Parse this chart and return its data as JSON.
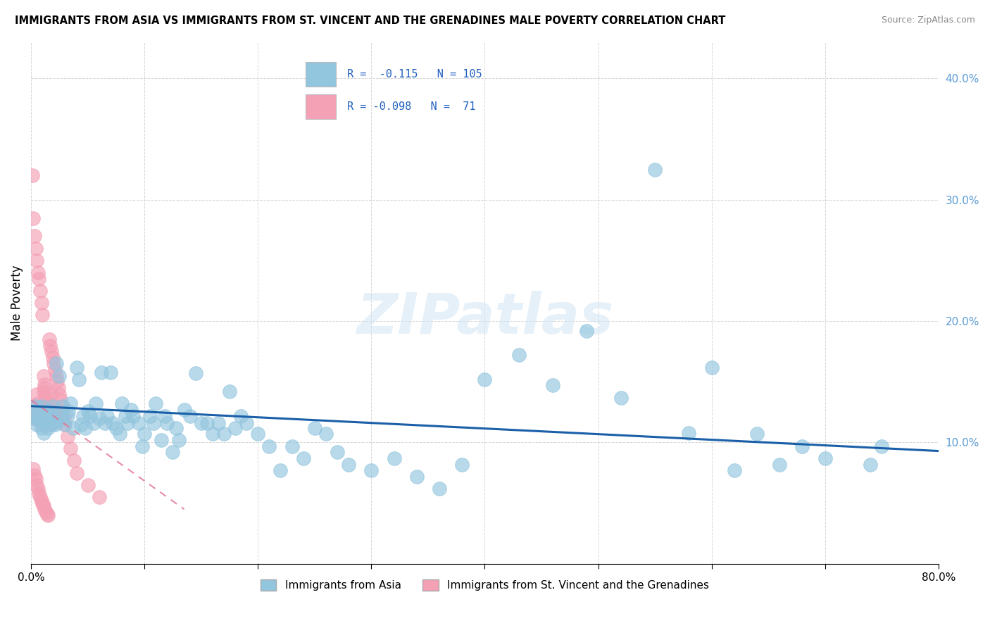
{
  "title": "IMMIGRANTS FROM ASIA VS IMMIGRANTS FROM ST. VINCENT AND THE GRENADINES MALE POVERTY CORRELATION CHART",
  "source": "Source: ZipAtlas.com",
  "ylabel": "Male Poverty",
  "yticks": [
    0.0,
    0.1,
    0.2,
    0.3,
    0.4
  ],
  "ytick_labels": [
    "",
    "10.0%",
    "20.0%",
    "30.0%",
    "40.0%"
  ],
  "xlim": [
    0.0,
    0.8
  ],
  "ylim": [
    0.0,
    0.43
  ],
  "legend_r_blue": "-0.115",
  "legend_n_blue": "105",
  "legend_r_pink": "-0.098",
  "legend_n_pink": "71",
  "blue_color": "#92c5de",
  "pink_color": "#f4a0b5",
  "trend_blue_color": "#1a5fa8",
  "trend_pink_color": "#e07090",
  "watermark": "ZIPatlas",
  "blue_trend_x0": 0.0,
  "blue_trend_y0": 0.13,
  "blue_trend_x1": 0.8,
  "blue_trend_y1": 0.093,
  "pink_trend_x0": 0.0,
  "pink_trend_y0": 0.135,
  "pink_trend_x1": 0.135,
  "pink_trend_y1": 0.045,
  "blue_x": [
    0.002,
    0.003,
    0.004,
    0.005,
    0.006,
    0.007,
    0.008,
    0.009,
    0.01,
    0.011,
    0.012,
    0.013,
    0.014,
    0.015,
    0.016,
    0.017,
    0.018,
    0.019,
    0.02,
    0.021,
    0.022,
    0.023,
    0.025,
    0.027,
    0.028,
    0.03,
    0.032,
    0.033,
    0.035,
    0.037,
    0.04,
    0.042,
    0.044,
    0.046,
    0.048,
    0.05,
    0.052,
    0.055,
    0.057,
    0.06,
    0.062,
    0.065,
    0.067,
    0.07,
    0.072,
    0.075,
    0.078,
    0.08,
    0.083,
    0.085,
    0.088,
    0.09,
    0.095,
    0.098,
    0.1,
    0.105,
    0.108,
    0.11,
    0.115,
    0.118,
    0.12,
    0.125,
    0.128,
    0.13,
    0.135,
    0.14,
    0.145,
    0.15,
    0.155,
    0.16,
    0.165,
    0.17,
    0.175,
    0.18,
    0.185,
    0.19,
    0.2,
    0.21,
    0.22,
    0.23,
    0.24,
    0.25,
    0.26,
    0.27,
    0.28,
    0.3,
    0.32,
    0.34,
    0.36,
    0.38,
    0.4,
    0.43,
    0.46,
    0.49,
    0.52,
    0.55,
    0.58,
    0.62,
    0.66,
    0.7,
    0.74,
    0.6,
    0.64,
    0.68,
    0.75
  ],
  "blue_y": [
    0.125,
    0.12,
    0.13,
    0.115,
    0.12,
    0.125,
    0.118,
    0.112,
    0.13,
    0.108,
    0.122,
    0.116,
    0.126,
    0.112,
    0.12,
    0.125,
    0.115,
    0.13,
    0.12,
    0.115,
    0.165,
    0.117,
    0.155,
    0.122,
    0.13,
    0.115,
    0.122,
    0.126,
    0.132,
    0.112,
    0.162,
    0.152,
    0.115,
    0.122,
    0.112,
    0.126,
    0.122,
    0.116,
    0.132,
    0.12,
    0.158,
    0.116,
    0.122,
    0.158,
    0.116,
    0.112,
    0.107,
    0.132,
    0.122,
    0.116,
    0.127,
    0.122,
    0.116,
    0.097,
    0.107,
    0.122,
    0.116,
    0.132,
    0.102,
    0.122,
    0.116,
    0.092,
    0.112,
    0.102,
    0.127,
    0.122,
    0.157,
    0.116,
    0.116,
    0.107,
    0.116,
    0.107,
    0.142,
    0.112,
    0.122,
    0.116,
    0.107,
    0.097,
    0.077,
    0.097,
    0.087,
    0.112,
    0.107,
    0.092,
    0.082,
    0.077,
    0.087,
    0.072,
    0.062,
    0.082,
    0.152,
    0.172,
    0.147,
    0.192,
    0.137,
    0.325,
    0.108,
    0.077,
    0.082,
    0.087,
    0.082,
    0.162,
    0.107,
    0.097,
    0.097
  ],
  "pink_x": [
    0.001,
    0.002,
    0.003,
    0.004,
    0.005,
    0.006,
    0.007,
    0.008,
    0.009,
    0.01,
    0.011,
    0.012,
    0.013,
    0.014,
    0.015,
    0.016,
    0.017,
    0.018,
    0.019,
    0.02,
    0.001,
    0.002,
    0.003,
    0.004,
    0.005,
    0.006,
    0.007,
    0.008,
    0.009,
    0.01,
    0.011,
    0.012,
    0.013,
    0.014,
    0.015,
    0.016,
    0.002,
    0.003,
    0.004,
    0.005,
    0.006,
    0.007,
    0.008,
    0.009,
    0.01,
    0.011,
    0.012,
    0.013,
    0.014,
    0.015,
    0.016,
    0.017,
    0.018,
    0.019,
    0.02,
    0.021,
    0.022,
    0.023,
    0.024,
    0.025,
    0.026,
    0.027,
    0.028,
    0.029,
    0.03,
    0.032,
    0.035,
    0.038,
    0.04,
    0.05,
    0.06
  ],
  "pink_y": [
    0.12,
    0.13,
    0.125,
    0.122,
    0.14,
    0.132,
    0.125,
    0.12,
    0.115,
    0.13,
    0.142,
    0.145,
    0.135,
    0.13,
    0.125,
    0.12,
    0.115,
    0.14,
    0.13,
    0.125,
    0.32,
    0.285,
    0.27,
    0.26,
    0.25,
    0.24,
    0.235,
    0.225,
    0.215,
    0.205,
    0.155,
    0.148,
    0.138,
    0.132,
    0.127,
    0.12,
    0.078,
    0.073,
    0.07,
    0.065,
    0.062,
    0.058,
    0.055,
    0.052,
    0.05,
    0.048,
    0.045,
    0.043,
    0.041,
    0.04,
    0.185,
    0.18,
    0.175,
    0.17,
    0.165,
    0.16,
    0.155,
    0.15,
    0.145,
    0.14,
    0.135,
    0.13,
    0.125,
    0.12,
    0.115,
    0.105,
    0.095,
    0.085,
    0.075,
    0.065,
    0.055
  ]
}
